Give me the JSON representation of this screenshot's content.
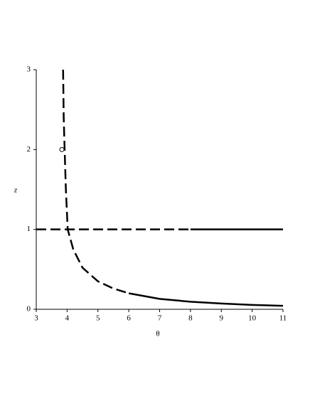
{
  "chart_data": {
    "type": "line",
    "x_label": "θ",
    "y_label": "z",
    "xlim": [
      3,
      11
    ],
    "ylim": [
      0,
      3
    ],
    "xticks": [
      3,
      4,
      5,
      6,
      7,
      8,
      9,
      10,
      11
    ],
    "yticks": [
      0,
      1,
      2,
      3
    ],
    "series": [
      {
        "color": "#000000",
        "style": "dash",
        "x": [
          3.87,
          3.89,
          3.92,
          3.96,
          4.02,
          4.2,
          4.5,
          5,
          5.5,
          6
        ],
        "values": [
          3,
          2.4,
          2,
          1.5,
          1,
          0.75,
          0.52,
          0.35,
          0.26,
          0.2
        ]
      },
      {
        "color": "#000000",
        "style": "solid",
        "x": [
          6,
          7,
          8,
          9,
          10,
          11
        ],
        "values": [
          0.2,
          0.13,
          0.095,
          0.072,
          0.055,
          0.043
        ]
      },
      {
        "color": "#000000",
        "style": "dash",
        "x": [
          3,
          8
        ],
        "values": [
          1,
          1
        ]
      },
      {
        "color": "#000000",
        "style": "solid",
        "x": [
          8,
          11
        ],
        "values": [
          1,
          1
        ]
      }
    ],
    "points": {
      "x": [
        3.83
      ],
      "values": [
        2
      ]
    }
  }
}
